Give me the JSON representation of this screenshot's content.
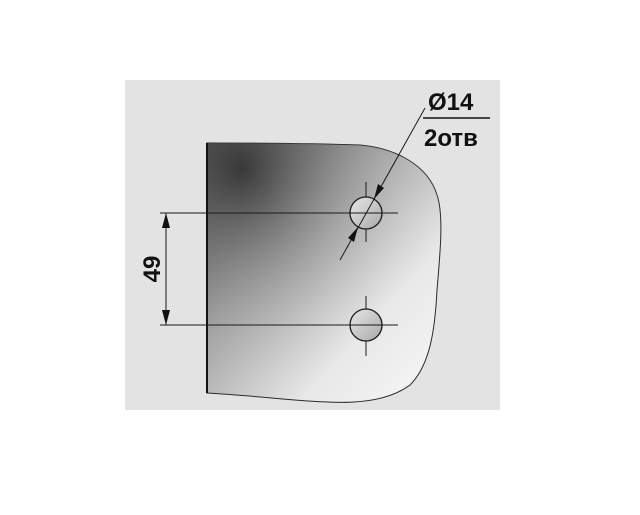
{
  "hole_spec": {
    "diameter_label": "Ø14",
    "count_label": "2отв"
  },
  "spacing": {
    "value_label": "49"
  },
  "colors": {
    "background_panel": "#e3e3e3",
    "plate_dark": "#3a3a3a",
    "plate_light": "#f6f6f6",
    "line": "#1a1a1a"
  }
}
